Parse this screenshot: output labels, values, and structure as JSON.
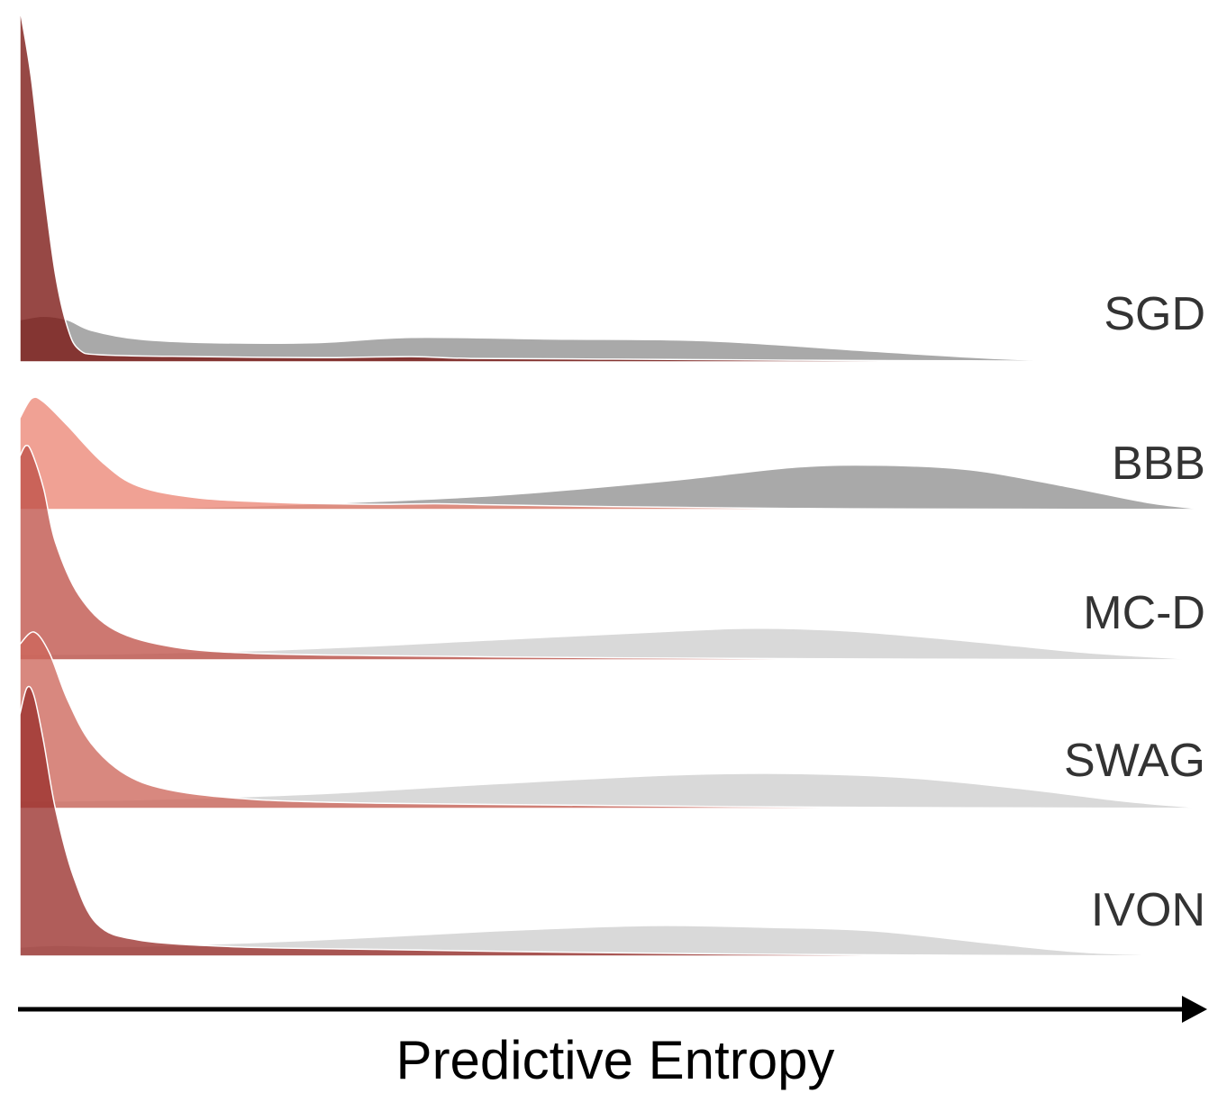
{
  "chart_data": {
    "type": "area",
    "chart_kind": "ridgeline density plot",
    "xlabel": "Predictive Entropy",
    "x_axis": "arrow only, no tick labels",
    "x_range": [
      0,
      1
    ],
    "grid": false,
    "legend": "none",
    "colors": {
      "SGD": "#7a1411",
      "BBB": "#ec8676",
      "MC-D": "#bf5249",
      "SWAG": "#cd665b",
      "IVON": "#9a2f2b",
      "out_of_distribution_dark": "#a9a9a9",
      "out_of_distribution_light": "#d9d9d9"
    },
    "series": [
      {
        "name": "SGD",
        "in_distribution_density": [
          [
            0,
            1.0
          ],
          [
            0.002,
            0.97
          ],
          [
            0.01,
            0.8
          ],
          [
            0.02,
            0.5
          ],
          [
            0.03,
            0.25
          ],
          [
            0.04,
            0.1
          ],
          [
            0.05,
            0.035
          ],
          [
            0.07,
            0.02
          ],
          [
            0.15,
            0.015
          ],
          [
            0.25,
            0.012
          ],
          [
            0.33,
            0.015
          ],
          [
            0.38,
            0.01
          ],
          [
            0.5,
            0.008
          ],
          [
            0.65,
            0.005
          ],
          [
            0.8,
            0.003
          ],
          [
            1.0,
            0.0
          ]
        ],
        "out_of_distribution_density": [
          [
            0,
            0.12
          ],
          [
            0.02,
            0.13
          ],
          [
            0.04,
            0.12
          ],
          [
            0.06,
            0.09
          ],
          [
            0.1,
            0.065
          ],
          [
            0.16,
            0.055
          ],
          [
            0.25,
            0.055
          ],
          [
            0.33,
            0.07
          ],
          [
            0.45,
            0.065
          ],
          [
            0.58,
            0.06
          ],
          [
            0.72,
            0.03
          ],
          [
            0.82,
            0.01
          ],
          [
            0.9,
            0.002
          ],
          [
            1.0,
            0.0
          ]
        ]
      },
      {
        "name": "BBB",
        "in_distribution_density": [
          [
            0,
            0.78
          ],
          [
            0.01,
            0.95
          ],
          [
            0.02,
            0.92
          ],
          [
            0.04,
            0.72
          ],
          [
            0.07,
            0.4
          ],
          [
            0.1,
            0.2
          ],
          [
            0.15,
            0.1
          ],
          [
            0.22,
            0.06
          ],
          [
            0.3,
            0.045
          ],
          [
            0.35,
            0.05
          ],
          [
            0.4,
            0.04
          ],
          [
            0.5,
            0.025
          ],
          [
            0.65,
            0.01
          ],
          [
            0.8,
            0.004
          ],
          [
            1.0,
            0.0
          ]
        ],
        "out_of_distribution_density": [
          [
            0,
            0.0
          ],
          [
            0.1,
            0.005
          ],
          [
            0.25,
            0.05
          ],
          [
            0.4,
            0.12
          ],
          [
            0.55,
            0.25
          ],
          [
            0.65,
            0.36
          ],
          [
            0.72,
            0.38
          ],
          [
            0.8,
            0.34
          ],
          [
            0.88,
            0.2
          ],
          [
            0.95,
            0.06
          ],
          [
            1.0,
            0.0
          ]
        ]
      },
      {
        "name": "MC-D",
        "in_distribution_density": [
          [
            0,
            0.95
          ],
          [
            0.005,
            1.0
          ],
          [
            0.01,
            0.97
          ],
          [
            0.02,
            0.8
          ],
          [
            0.03,
            0.55
          ],
          [
            0.05,
            0.3
          ],
          [
            0.08,
            0.14
          ],
          [
            0.13,
            0.06
          ],
          [
            0.2,
            0.03
          ],
          [
            0.3,
            0.02
          ],
          [
            0.45,
            0.012
          ],
          [
            0.6,
            0.007
          ],
          [
            0.8,
            0.003
          ],
          [
            1.0,
            0.0
          ]
        ],
        "out_of_distribution_density": [
          [
            0,
            0.04
          ],
          [
            0.1,
            0.045
          ],
          [
            0.25,
            0.08
          ],
          [
            0.4,
            0.14
          ],
          [
            0.55,
            0.2
          ],
          [
            0.62,
            0.22
          ],
          [
            0.7,
            0.2
          ],
          [
            0.8,
            0.13
          ],
          [
            0.9,
            0.05
          ],
          [
            1.0,
            0.0
          ]
        ]
      },
      {
        "name": "SWAG",
        "in_distribution_density": [
          [
            0,
            0.93
          ],
          [
            0.012,
            1.0
          ],
          [
            0.025,
            0.88
          ],
          [
            0.04,
            0.62
          ],
          [
            0.06,
            0.37
          ],
          [
            0.09,
            0.19
          ],
          [
            0.13,
            0.1
          ],
          [
            0.2,
            0.05
          ],
          [
            0.3,
            0.03
          ],
          [
            0.45,
            0.02
          ],
          [
            0.6,
            0.01
          ],
          [
            0.8,
            0.004
          ],
          [
            1.0,
            0.0
          ]
        ],
        "out_of_distribution_density": [
          [
            0,
            0.05
          ],
          [
            0.1,
            0.06
          ],
          [
            0.25,
            0.1
          ],
          [
            0.4,
            0.17
          ],
          [
            0.55,
            0.23
          ],
          [
            0.65,
            0.24
          ],
          [
            0.75,
            0.21
          ],
          [
            0.85,
            0.13
          ],
          [
            0.93,
            0.05
          ],
          [
            1.0,
            0.0
          ]
        ]
      },
      {
        "name": "IVON",
        "in_distribution_density": [
          [
            0,
            0.9
          ],
          [
            0.006,
            1.0
          ],
          [
            0.012,
            0.97
          ],
          [
            0.02,
            0.8
          ],
          [
            0.03,
            0.55
          ],
          [
            0.045,
            0.3
          ],
          [
            0.065,
            0.12
          ],
          [
            0.1,
            0.06
          ],
          [
            0.18,
            0.035
          ],
          [
            0.3,
            0.025
          ],
          [
            0.45,
            0.015
          ],
          [
            0.6,
            0.008
          ],
          [
            0.8,
            0.003
          ],
          [
            1.0,
            0.0
          ]
        ],
        "out_of_distribution_density": [
          [
            0,
            0.05
          ],
          [
            0.03,
            0.06
          ],
          [
            0.1,
            0.055
          ],
          [
            0.25,
            0.09
          ],
          [
            0.4,
            0.14
          ],
          [
            0.53,
            0.17
          ],
          [
            0.63,
            0.16
          ],
          [
            0.72,
            0.14
          ],
          [
            0.82,
            0.07
          ],
          [
            0.9,
            0.02
          ],
          [
            1.0,
            0.0
          ]
        ]
      }
    ]
  }
}
